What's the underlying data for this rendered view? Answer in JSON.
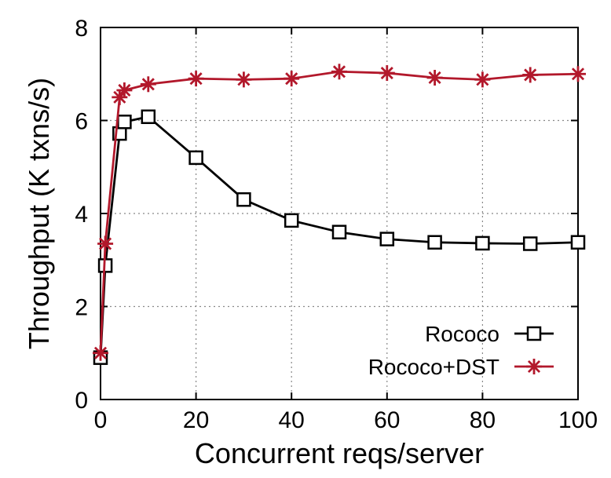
{
  "chart_data": {
    "type": "line",
    "xlabel": "Concurrent reqs/server",
    "ylabel": "Throughput (K txns/s)",
    "xlim": [
      0,
      100
    ],
    "ylim": [
      0,
      8
    ],
    "xticks": [
      0,
      20,
      40,
      60,
      80,
      100
    ],
    "yticks": [
      0,
      2,
      4,
      6,
      8
    ],
    "x_tick_labels": [
      "0",
      "20",
      "40",
      "60",
      "80",
      "100"
    ],
    "y_tick_labels": [
      "0",
      "2",
      "4",
      "6",
      "8"
    ],
    "grid": true,
    "legend_position": "bottom-right",
    "series": [
      {
        "name": "Rococo",
        "color": "#000000",
        "marker": "open-square",
        "x": [
          0,
          1,
          4,
          5,
          10,
          20,
          30,
          40,
          50,
          60,
          70,
          80,
          90,
          100
        ],
        "values": [
          0.9,
          2.88,
          5.72,
          5.97,
          6.08,
          5.2,
          4.3,
          3.85,
          3.6,
          3.45,
          3.38,
          3.36,
          3.35,
          3.38
        ]
      },
      {
        "name": "Rococo+DST",
        "color": "#b2182b",
        "marker": "asterisk",
        "x": [
          0,
          1,
          4,
          5,
          10,
          20,
          30,
          40,
          50,
          60,
          70,
          80,
          90,
          100
        ],
        "values": [
          1.0,
          3.35,
          6.5,
          6.65,
          6.78,
          6.9,
          6.88,
          6.9,
          7.05,
          7.02,
          6.92,
          6.88,
          6.98,
          7.0
        ]
      }
    ]
  }
}
